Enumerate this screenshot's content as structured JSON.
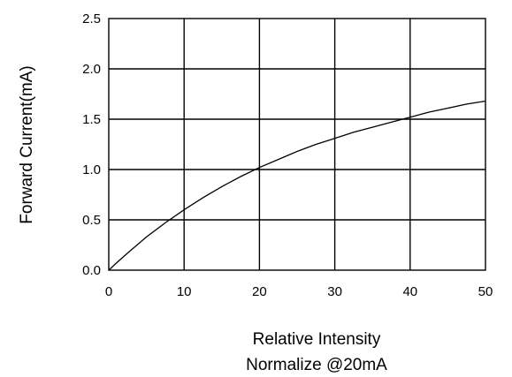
{
  "chart_data": {
    "type": "line",
    "ylabel": "Forward Current(mA)",
    "xlabel_lines": [
      "Relative Intensity",
      "Normalize @20mA"
    ],
    "xlim": [
      0,
      50
    ],
    "ylim": [
      0,
      2.5
    ],
    "x_ticks": [
      0,
      10,
      20,
      30,
      40,
      50
    ],
    "x_tick_labels": [
      "0",
      "10",
      "20",
      "30",
      "40",
      "50"
    ],
    "y_ticks": [
      0,
      0.5,
      1.0,
      1.5,
      2.0,
      2.5
    ],
    "y_tick_labels": [
      "0.0",
      "0.5",
      "1.0",
      "1.5",
      "2.0",
      "2.5"
    ],
    "grid": true,
    "series": [
      {
        "color": "#000000",
        "x": [
          0,
          1,
          2.5,
          5,
          7.5,
          10,
          12.5,
          15,
          17.5,
          20,
          22.5,
          25,
          27.5,
          30,
          32.5,
          35,
          37.5,
          40,
          42.5,
          45,
          47.5,
          50
        ],
        "y": [
          0.0,
          0.07,
          0.17,
          0.33,
          0.47,
          0.6,
          0.72,
          0.83,
          0.93,
          1.02,
          1.1,
          1.18,
          1.25,
          1.31,
          1.37,
          1.42,
          1.47,
          1.52,
          1.57,
          1.61,
          1.65,
          1.68
        ]
      }
    ]
  }
}
